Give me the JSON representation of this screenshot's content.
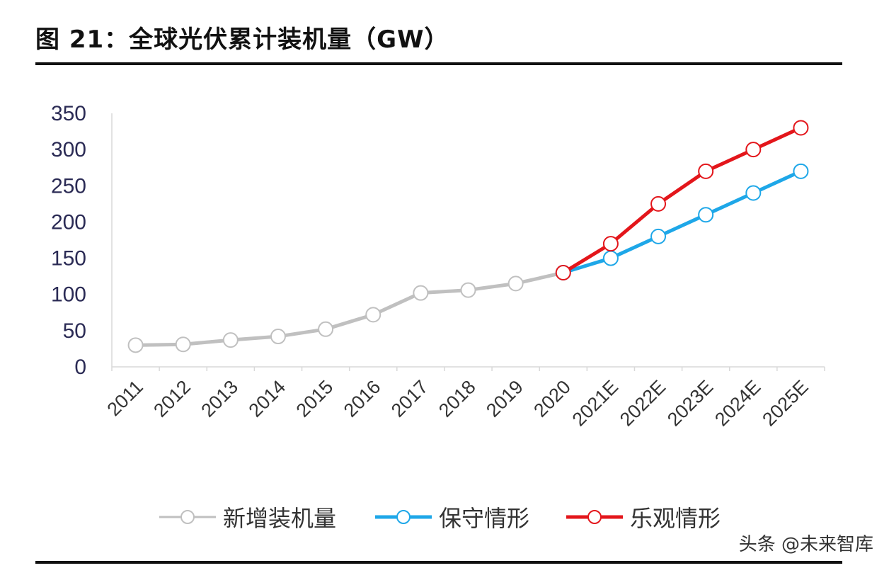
{
  "title": "图 21：全球光伏累计装机量（GW）",
  "watermark": "头条 @未来智库",
  "chart_data": {
    "type": "line",
    "categories": [
      "2011",
      "2012",
      "2013",
      "2014",
      "2015",
      "2016",
      "2017",
      "2018",
      "2019",
      "2020",
      "2021E",
      "2022E",
      "2023E",
      "2024E",
      "2025E"
    ],
    "ylim": [
      0,
      350
    ],
    "yticks": [
      0,
      50,
      100,
      150,
      200,
      250,
      300,
      350
    ],
    "grid": false,
    "legend_position": "bottom",
    "series": [
      {
        "name": "新增装机量",
        "color": "#c0c0c0",
        "values": [
          30,
          31,
          37,
          42,
          52,
          72,
          102,
          106,
          115,
          130,
          null,
          null,
          null,
          null,
          null
        ]
      },
      {
        "name": "保守情形",
        "color": "#1ea7e8",
        "values": [
          null,
          null,
          null,
          null,
          null,
          null,
          null,
          null,
          null,
          130,
          150,
          180,
          210,
          240,
          270
        ]
      },
      {
        "name": "乐观情形",
        "color": "#e3161b",
        "values": [
          null,
          null,
          null,
          null,
          null,
          null,
          null,
          null,
          null,
          130,
          170,
          225,
          270,
          300,
          330
        ]
      }
    ]
  }
}
